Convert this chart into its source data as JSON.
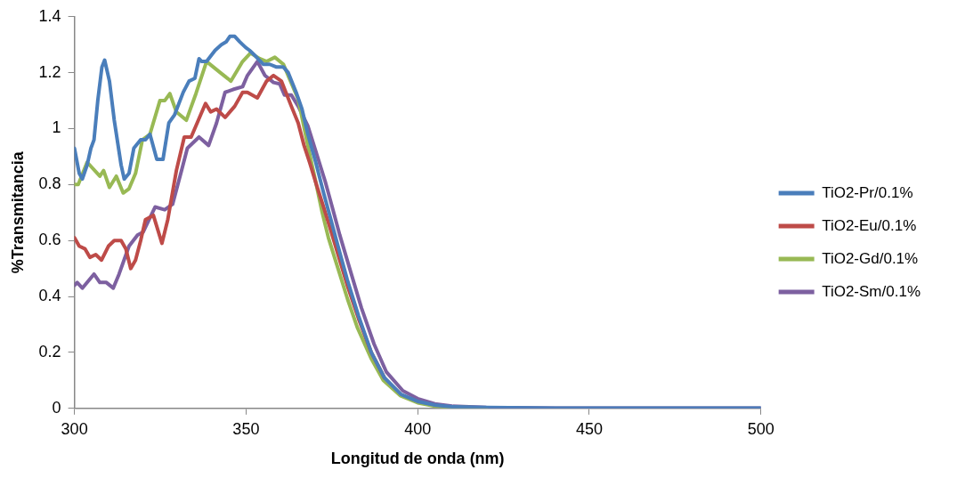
{
  "chart_data": {
    "type": "line",
    "xlabel": "Longitud de onda (nm)",
    "ylabel": "%Transmitancia",
    "xlim": [
      300,
      500
    ],
    "xticks": [
      300,
      350,
      400,
      450,
      500
    ],
    "ylim": [
      0,
      1.4
    ],
    "yticks": [
      0,
      0.2,
      0.4,
      0.6,
      0.8,
      1,
      1.2,
      1.4
    ],
    "grid": false,
    "legend": "right",
    "marker": "none",
    "line_style": "solid",
    "series": [
      {
        "name": "TiO2-Pr/0.1%",
        "color": "#4a7ebb",
        "x": [
          300,
          301.4,
          302.3,
          303.7,
          304.8,
          305.7,
          306.8,
          308,
          308.8,
          310.2,
          311.6,
          313.6,
          314.5,
          315.9,
          317.3,
          319.3,
          320.7,
          322,
          324,
          325.8,
          327.5,
          329.2,
          331.7,
          333.4,
          335.1,
          336.3,
          337.1,
          338.5,
          341,
          342.8,
          344.2,
          345.3,
          346.7,
          348.2,
          349.9,
          351,
          352.7,
          355,
          356.9,
          358.9,
          360.9,
          362.3,
          364.6,
          366.3,
          368,
          370.3,
          372.6,
          374.6,
          376.8,
          379.5,
          382.8,
          386.5,
          390.3,
          395.2,
          400,
          405,
          410,
          420,
          440,
          500
        ],
        "values": [
          0.93,
          0.84,
          0.82,
          0.87,
          0.93,
          0.96,
          1.1,
          1.22,
          1.245,
          1.17,
          1.03,
          0.87,
          0.82,
          0.84,
          0.93,
          0.96,
          0.96,
          0.98,
          0.89,
          0.89,
          1.02,
          1.05,
          1.13,
          1.17,
          1.18,
          1.25,
          1.24,
          1.24,
          1.28,
          1.3,
          1.31,
          1.33,
          1.33,
          1.31,
          1.29,
          1.28,
          1.26,
          1.23,
          1.23,
          1.22,
          1.22,
          1.2,
          1.13,
          1.07,
          0.98,
          0.88,
          0.77,
          0.68,
          0.58,
          0.46,
          0.33,
          0.2,
          0.11,
          0.05,
          0.025,
          0.012,
          0.006,
          0.003,
          0.001,
          0.001
        ]
      },
      {
        "name": "TiO2-Eu/0.1%",
        "color": "#be4b48",
        "x": [
          300,
          301.4,
          303.1,
          304.5,
          306.2,
          307.9,
          309.9,
          311.6,
          313.6,
          315,
          316.4,
          317.8,
          319.3,
          320.7,
          323,
          325.5,
          327.2,
          329.7,
          332,
          334,
          336.8,
          338.2,
          339.7,
          341.4,
          343.9,
          346.7,
          349,
          350.4,
          353.3,
          356,
          358,
          360.3,
          363.2,
          365.2,
          366.9,
          368.5,
          370.5,
          372.6,
          374.6,
          376.8,
          379.5,
          382.8,
          386.5,
          390.3
        ],
        "values": [
          0.61,
          0.58,
          0.57,
          0.54,
          0.55,
          0.53,
          0.58,
          0.6,
          0.6,
          0.57,
          0.5,
          0.53,
          0.6,
          0.675,
          0.69,
          0.59,
          0.675,
          0.85,
          0.97,
          0.97,
          1.05,
          1.09,
          1.06,
          1.07,
          1.04,
          1.08,
          1.13,
          1.13,
          1.11,
          1.17,
          1.19,
          1.17,
          1.08,
          1.02,
          0.94,
          0.88,
          0.8,
          0.72,
          0.64,
          0.55,
          0.44,
          0.32,
          0.2,
          0.11
        ]
      },
      {
        "name": "TiO2-Gd/0.1%",
        "color": "#98b954",
        "x": [
          300,
          301.1,
          303.7,
          307.4,
          308.5,
          310.2,
          312.2,
          314.2,
          315.9,
          317.8,
          319.8,
          322,
          324.9,
          326.3,
          327.8,
          329.7,
          332.6,
          335.4,
          338.5,
          342.5,
          345.6,
          349,
          351.3,
          354,
          356,
          358.4,
          360.9,
          362.6,
          365.2,
          368,
          370.3,
          372.2,
          374,
          376.8,
          379.6,
          382.4,
          386.4,
          390,
          394.9,
          400,
          405,
          410,
          420
        ],
        "values": [
          0.8,
          0.8,
          0.88,
          0.83,
          0.85,
          0.79,
          0.83,
          0.77,
          0.785,
          0.84,
          0.96,
          0.98,
          1.1,
          1.1,
          1.125,
          1.06,
          1.03,
          1.125,
          1.24,
          1.2,
          1.17,
          1.24,
          1.27,
          1.25,
          1.24,
          1.255,
          1.23,
          1.18,
          1.105,
          0.94,
          0.81,
          0.7,
          0.61,
          0.5,
          0.39,
          0.29,
          0.18,
          0.1,
          0.046,
          0.02,
          0.008,
          0.004,
          0.002
        ]
      },
      {
        "name": "TiO2-Sm/0.1%",
        "color": "#7d60a0",
        "x": [
          300,
          300.8,
          302.3,
          305.7,
          307.4,
          309.3,
          311.3,
          313,
          315.9,
          318.4,
          320,
          323.5,
          326.3,
          328.6,
          331.2,
          332.9,
          336.3,
          339.1,
          341.4,
          343.9,
          346.2,
          349,
          350.4,
          353.3,
          355.5,
          358,
          359.8,
          361.2,
          363.2,
          365.2,
          368,
          370.3,
          373.1,
          375.1,
          377.3,
          380.2,
          383.6,
          387.3,
          390.9,
          395.7,
          400,
          405,
          410,
          420,
          440,
          500
        ],
        "values": [
          0.44,
          0.45,
          0.43,
          0.48,
          0.45,
          0.45,
          0.43,
          0.48,
          0.58,
          0.62,
          0.63,
          0.72,
          0.71,
          0.73,
          0.85,
          0.93,
          0.97,
          0.94,
          1.02,
          1.13,
          1.14,
          1.15,
          1.19,
          1.24,
          1.19,
          1.165,
          1.16,
          1.12,
          1.12,
          1.08,
          1.01,
          0.92,
          0.81,
          0.72,
          0.62,
          0.5,
          0.36,
          0.23,
          0.13,
          0.063,
          0.035,
          0.016,
          0.008,
          0.003,
          0.001,
          0.001
        ]
      }
    ]
  }
}
